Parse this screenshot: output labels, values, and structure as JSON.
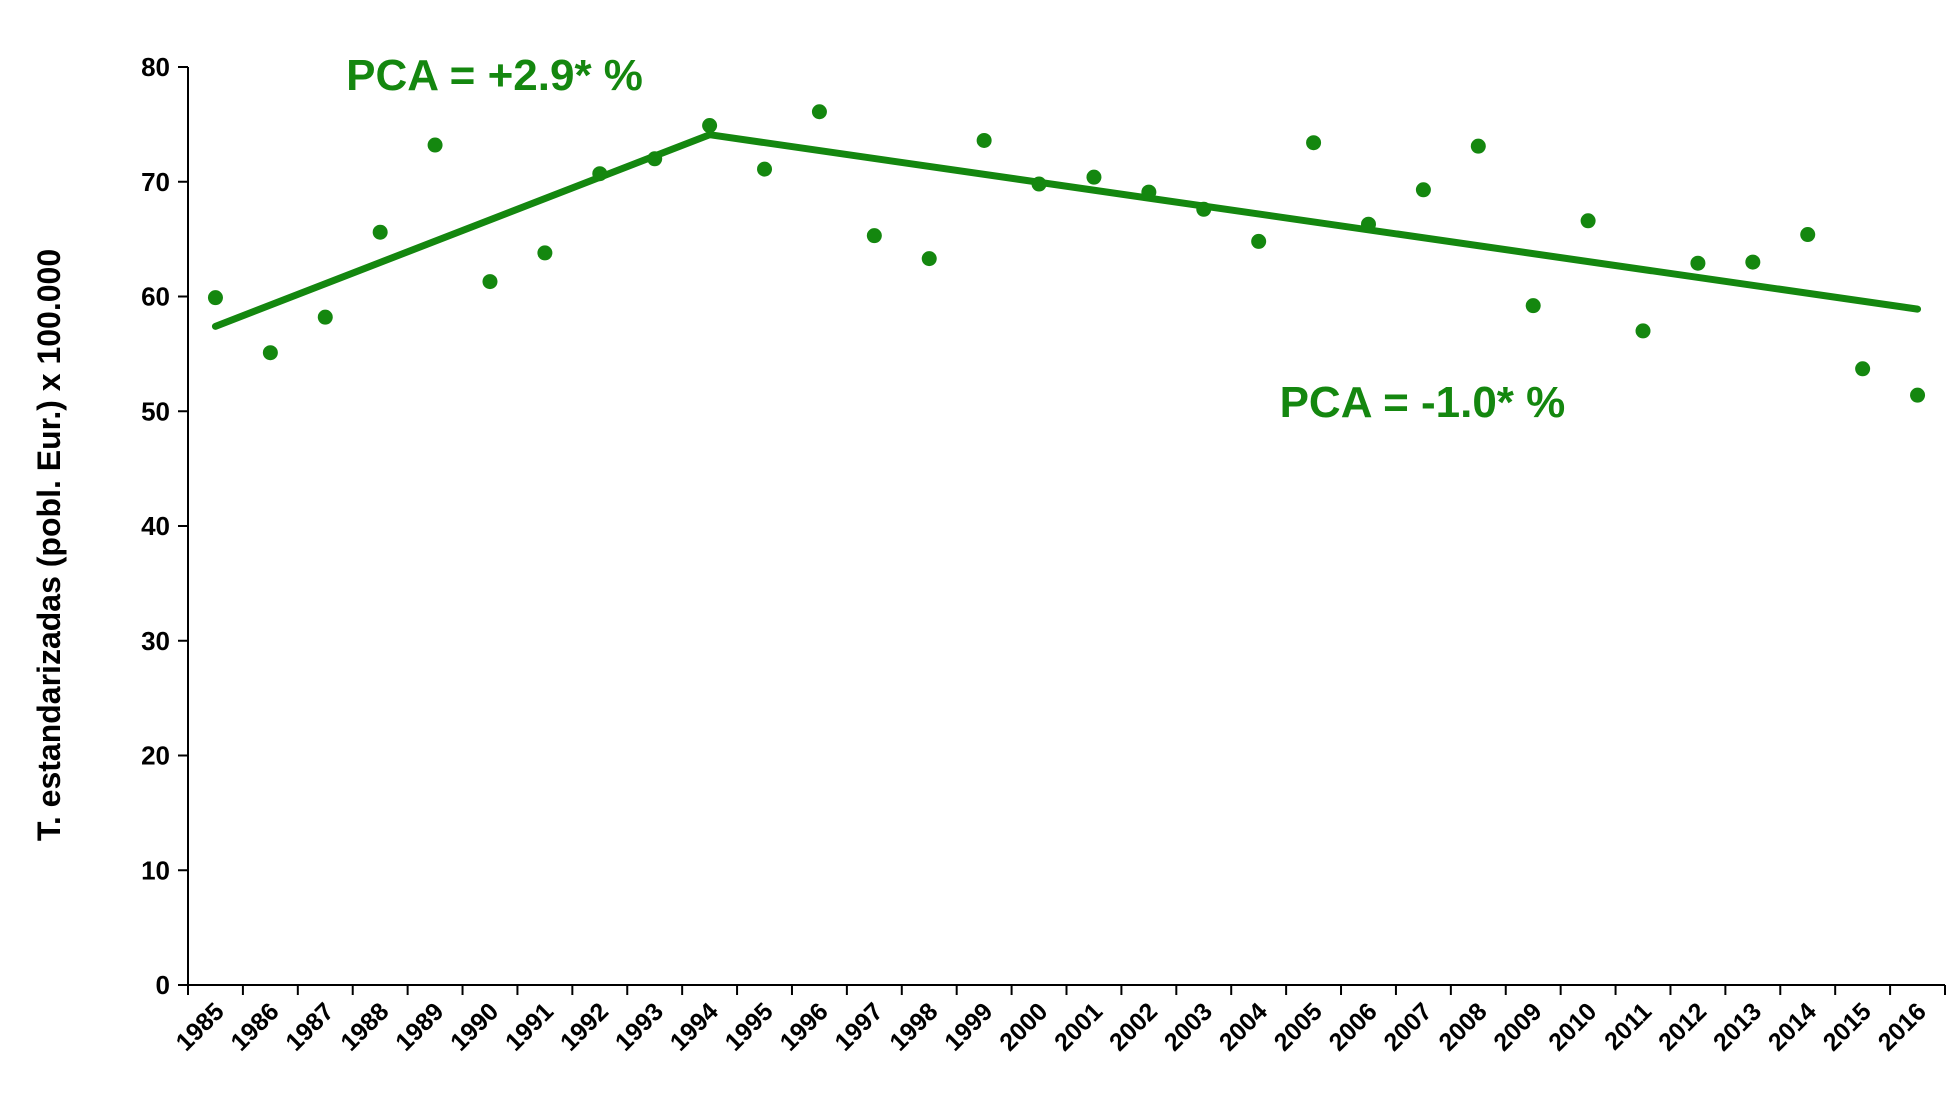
{
  "chart_data": {
    "type": "scatter",
    "ylabel": "T. estandarizadas (pobl. Eur.) x 100.000",
    "ylim": [
      0,
      80
    ],
    "yticks": [
      0,
      10,
      20,
      30,
      40,
      50,
      60,
      70,
      80
    ],
    "grid": false,
    "color": "#14870F",
    "series": [
      {
        "x": [
          "1985",
          "1986",
          "1987",
          "1988",
          "1989",
          "1990",
          "1991",
          "1992",
          "1993",
          "1994",
          "1995",
          "1996",
          "1997",
          "1998",
          "1999",
          "2000",
          "2001",
          "2002",
          "2003",
          "2004",
          "2005",
          "2006",
          "2007",
          "2008",
          "2009",
          "2010",
          "2011",
          "2012",
          "2013",
          "2014",
          "2015",
          "2016"
        ],
        "values": [
          59.9,
          55.1,
          58.2,
          65.6,
          73.2,
          61.3,
          63.8,
          70.7,
          72.0,
          74.9,
          71.1,
          76.1,
          65.3,
          63.3,
          73.6,
          69.8,
          70.4,
          69.1,
          67.6,
          64.8,
          73.4,
          66.3,
          69.3,
          73.1,
          59.2,
          66.6,
          57.0,
          62.9,
          63.0,
          65.4,
          53.7,
          51.4
        ]
      },
      {
        "type": "line",
        "x": [
          "1985",
          "1994",
          "2016"
        ],
        "values": [
          57.4,
          74.1,
          58.9
        ]
      }
    ],
    "annotations": [
      {
        "text": "PCA = +2.9* %",
        "x": "1988",
        "y": 78
      },
      {
        "text": "PCA = -1.0* %",
        "x": "2005",
        "y": 49.5
      }
    ]
  }
}
